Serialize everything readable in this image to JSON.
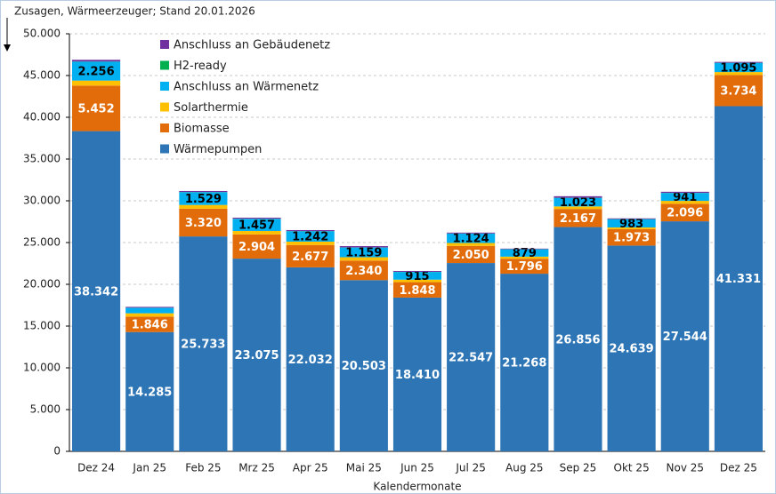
{
  "chart_data": {
    "type": "stacked_bar",
    "title": "Zusagen, Wärmeerzeuger; Stand 20.01.2026",
    "x_label": "Kalendermonate",
    "categories": [
      "Dez 24",
      "Jan 25",
      "Feb 25",
      "Mrz 25",
      "Apr 25",
      "Mai 25",
      "Jun 25",
      "Jul 25",
      "Aug 25",
      "Sep 25",
      "Okt 25",
      "Nov 25",
      "Dez 25"
    ],
    "ylim": [
      0,
      50000
    ],
    "yticks": [
      0,
      {
        "value": 5000,
        "label": "5.000"
      },
      {
        "value": 10000,
        "label": "10.000"
      },
      {
        "value": 15000,
        "label": "15.000"
      },
      {
        "value": 20000,
        "label": "20.000"
      },
      {
        "value": 25000,
        "label": "25.000"
      },
      {
        "value": 30000,
        "label": "30.000"
      },
      {
        "value": 35000,
        "label": "35.000"
      },
      {
        "value": 40000,
        "label": "40.000"
      },
      {
        "value": 45000,
        "label": "45.000"
      },
      {
        "value": 50000,
        "label": "50.000"
      }
    ],
    "grid": true,
    "legend": "upper left",
    "series": [
      {
        "name": "Wärmepumpen",
        "color": "#2e75b6",
        "label_color": "#ffffff",
        "values": [
          38342,
          14285,
          25733,
          23075,
          22032,
          20503,
          18410,
          22547,
          21268,
          26856,
          24639,
          27544,
          41331
        ],
        "value_labels": [
          "38.342",
          "14.285",
          "25.733",
          "23.075",
          "22.032",
          "20.503",
          "18.410",
          "22.547",
          "21.268",
          "26.856",
          "24.639",
          "27.544",
          "41.331"
        ]
      },
      {
        "name": "Biomasse",
        "color": "#e36c0a",
        "label_color": "#ffffff",
        "values": [
          5452,
          1846,
          3320,
          2904,
          2677,
          2340,
          1848,
          2050,
          1796,
          2167,
          1973,
          2096,
          3734
        ],
        "value_labels": [
          "5.452",
          "1.846",
          "3.320",
          "2.904",
          "2.677",
          "2.340",
          "1.848",
          "2.050",
          "1.796",
          "2.167",
          "1.973",
          "2.096",
          "3.734"
        ]
      },
      {
        "name": "Solarthermie",
        "color": "#ffc000",
        "values": [
          600,
          400,
          450,
          400,
          400,
          400,
          300,
          350,
          250,
          300,
          200,
          350,
          350
        ]
      },
      {
        "name": "Anschluss an Wärmenetz",
        "color": "#00b0f0",
        "label_color": "#000000",
        "values": [
          2256,
          650,
          1529,
          1457,
          1242,
          1159,
          915,
          1124,
          879,
          1023,
          983,
          941,
          1095
        ],
        "value_labels": [
          "2.256",
          null,
          "1.529",
          "1.457",
          "1.242",
          "1.159",
          "915",
          "1.124",
          "879",
          "1.023",
          "983",
          "941",
          "1.095"
        ]
      },
      {
        "name": "H2-ready",
        "color": "#00b050",
        "values": [
          30,
          20,
          20,
          20,
          20,
          20,
          20,
          20,
          20,
          20,
          20,
          20,
          20
        ]
      },
      {
        "name": "Anschluss an Gebäudenetz",
        "color": "#7030a0",
        "values": [
          200,
          100,
          120,
          120,
          120,
          150,
          100,
          100,
          60,
          180,
          80,
          130,
          100
        ]
      }
    ]
  }
}
